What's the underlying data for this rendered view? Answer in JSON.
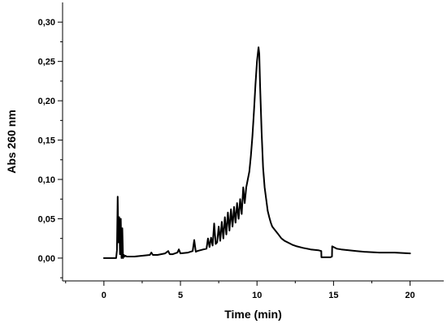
{
  "chart_data": {
    "type": "line",
    "title": "",
    "xlabel": "Time (min)",
    "ylabel": "Abs 260 nm",
    "xlim": [
      -2.7,
      22.2
    ],
    "ylim": [
      -0.029,
      0.325
    ],
    "x_ticks": [
      0,
      5,
      10,
      15,
      20
    ],
    "x_tick_labels": [
      "0",
      "5",
      "10",
      "15",
      "20"
    ],
    "y_ticks": [
      0.0,
      0.05,
      0.1,
      0.15,
      0.2,
      0.25,
      0.3
    ],
    "y_tick_labels": [
      "0,00",
      "0,05",
      "0,10",
      "0,15",
      "0,20",
      "0,25",
      "0,30"
    ],
    "grid": false,
    "legend": "none",
    "series": [
      {
        "x": [
          0,
          0.8,
          0.85,
          0.9,
          0.95,
          1.0,
          1.05,
          1.1,
          1.15,
          1.2,
          1.25,
          1.3,
          1.35,
          1.4,
          1.5,
          1.7,
          2.0,
          2.5,
          3.0,
          3.1,
          3.2,
          3.5,
          4.0,
          4.2,
          4.3,
          4.5,
          4.8,
          4.9,
          5.0,
          5.5,
          5.8,
          5.9,
          6.0,
          6.1,
          6.3,
          6.5,
          6.7,
          6.8,
          6.9,
          7.0,
          7.1,
          7.2,
          7.3,
          7.4,
          7.5,
          7.6,
          7.7,
          7.8,
          7.9,
          8.0,
          8.1,
          8.2,
          8.3,
          8.4,
          8.5,
          8.6,
          8.7,
          8.8,
          8.9,
          9.0,
          9.1,
          9.2,
          9.3,
          9.4,
          9.5,
          9.6,
          9.7,
          9.8,
          9.9,
          10.0,
          10.1,
          10.15,
          10.2,
          10.3,
          10.4,
          10.5,
          10.6,
          10.7,
          10.8,
          10.9,
          11.0,
          11.2,
          11.4,
          11.6,
          11.8,
          12.0,
          12.3,
          12.6,
          13.0,
          13.5,
          14.0,
          14.2,
          14.21,
          14.5,
          14.8,
          14.9,
          14.91,
          15.0,
          15.2,
          15.5,
          16.0,
          16.5,
          17.0,
          18.0,
          19.0,
          20.0
        ],
        "y": [
          0.0,
          0.0,
          0.01,
          0.078,
          0.02,
          0.052,
          0.005,
          0.05,
          0.0,
          0.038,
          0.0,
          0.004,
          0.002,
          0.003,
          0.002,
          0.002,
          0.002,
          0.003,
          0.004,
          0.007,
          0.004,
          0.004,
          0.006,
          0.009,
          0.005,
          0.005,
          0.007,
          0.011,
          0.006,
          0.007,
          0.009,
          0.023,
          0.008,
          0.009,
          0.01,
          0.011,
          0.012,
          0.025,
          0.014,
          0.026,
          0.016,
          0.044,
          0.018,
          0.02,
          0.04,
          0.022,
          0.046,
          0.025,
          0.052,
          0.03,
          0.058,
          0.035,
          0.062,
          0.04,
          0.065,
          0.045,
          0.07,
          0.05,
          0.075,
          0.056,
          0.09,
          0.07,
          0.09,
          0.1,
          0.11,
          0.13,
          0.155,
          0.185,
          0.22,
          0.25,
          0.268,
          0.26,
          0.22,
          0.16,
          0.115,
          0.09,
          0.075,
          0.06,
          0.052,
          0.045,
          0.04,
          0.035,
          0.03,
          0.025,
          0.022,
          0.02,
          0.017,
          0.015,
          0.013,
          0.011,
          0.01,
          0.009,
          0.001,
          0.001,
          0.001,
          0.002,
          0.015,
          0.014,
          0.012,
          0.011,
          0.01,
          0.009,
          0.008,
          0.007,
          0.007,
          0.006
        ]
      }
    ]
  }
}
